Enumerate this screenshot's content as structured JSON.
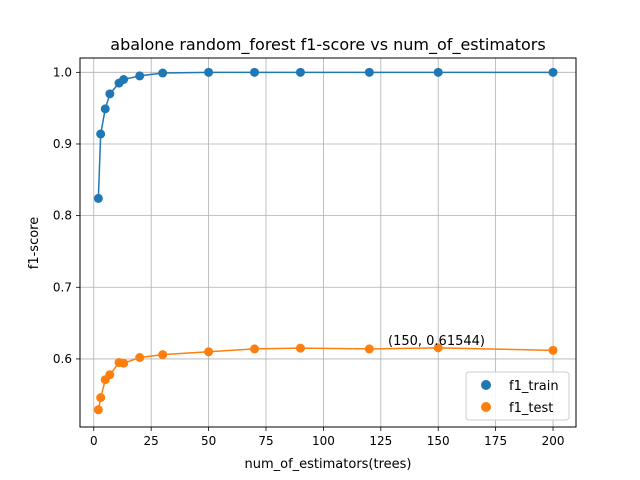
{
  "chart_data": {
    "type": "line",
    "title": "abalone random_forest f1-score vs num_of_estimators",
    "xlabel": "num_of_estimators(trees)",
    "ylabel": "f1-score",
    "xlim": [
      -6,
      210
    ],
    "ylim": [
      0.505,
      1.02
    ],
    "xticks": [
      0,
      25,
      50,
      75,
      100,
      125,
      150,
      175,
      200
    ],
    "yticks": [
      0.6,
      0.7,
      0.8,
      0.9,
      1.0
    ],
    "xtick_labels": [
      "0",
      "25",
      "50",
      "75",
      "100",
      "125",
      "150",
      "175",
      "200"
    ],
    "ytick_labels": [
      "0.6",
      "0.7",
      "0.8",
      "0.9",
      "1.0"
    ],
    "grid": true,
    "legend_position": "bottom-right",
    "x": [
      2,
      3,
      5,
      7,
      11,
      13,
      20,
      30,
      50,
      70,
      90,
      120,
      150,
      200
    ],
    "series": [
      {
        "name": "f1_train",
        "color": "#1f77b4",
        "values": [
          0.824,
          0.914,
          0.949,
          0.97,
          0.985,
          0.99,
          0.995,
          0.999,
          1.0,
          1.0,
          1.0,
          1.0,
          1.0,
          1.0
        ]
      },
      {
        "name": "f1_test",
        "color": "#ff7f0e",
        "values": [
          0.529,
          0.546,
          0.571,
          0.578,
          0.595,
          0.594,
          0.602,
          0.606,
          0.61,
          0.614,
          0.615,
          0.614,
          0.61544,
          0.612
        ]
      }
    ],
    "annotation": {
      "text": "(150, 0.61544)",
      "x": 150,
      "y": 0.61544
    }
  }
}
